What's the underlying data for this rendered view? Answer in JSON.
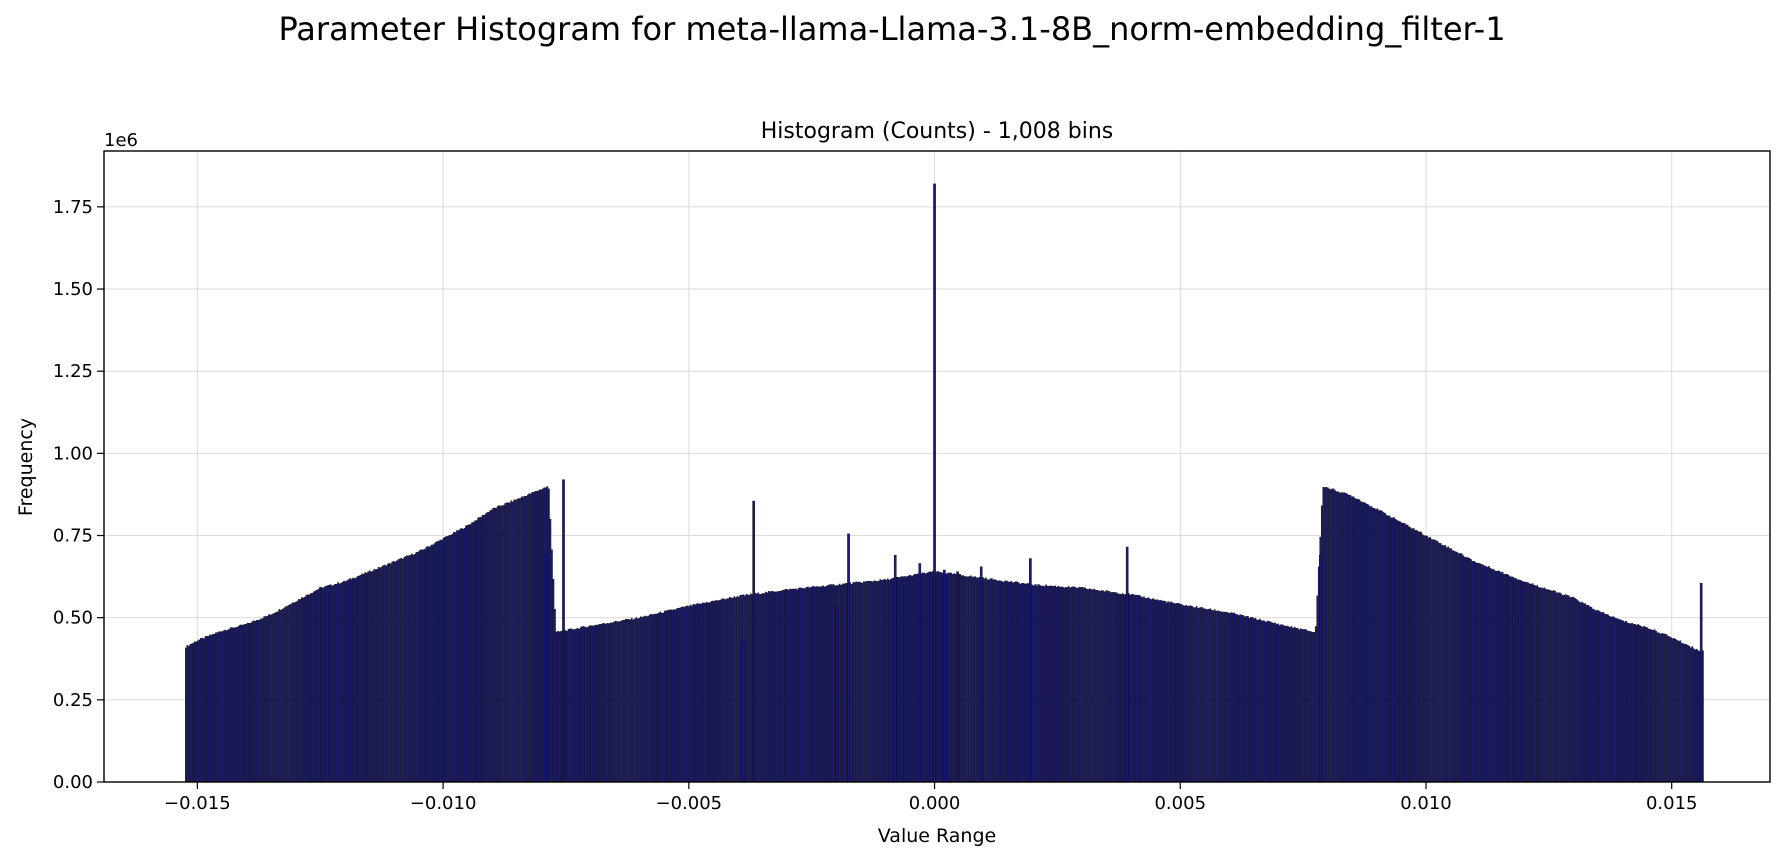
{
  "chart_data": {
    "type": "bar",
    "suptitle": "Parameter Histogram for meta-llama-Llama-3.1-8B_norm-embedding_filter-1",
    "title": "Histogram (Counts) - 1,008 bins",
    "xlabel": "Value Range",
    "ylabel": "Frequency",
    "y_offset_label": "1e6",
    "xlim": [
      -0.0169,
      0.017
    ],
    "ylim": [
      0,
      1.92
    ],
    "x_ticks": [
      -0.015,
      -0.01,
      -0.005,
      0.0,
      0.005,
      0.01,
      0.015
    ],
    "x_tick_labels": [
      "−0.015",
      "−0.010",
      "−0.005",
      "0.000",
      "0.005",
      "0.010",
      "0.015"
    ],
    "y_ticks": [
      0,
      0.25,
      0.5,
      0.75,
      1.0,
      1.25,
      1.5,
      1.75
    ],
    "y_tick_labels": [
      "0.00",
      "0.25",
      "0.50",
      "0.75",
      "1.00",
      "1.25",
      "1.50",
      "1.75"
    ],
    "grid": true,
    "bar_color": "#1c1c80",
    "edge_color": "#000000",
    "bins": 1008,
    "x_range": [
      -0.01525,
      0.01565
    ],
    "profile": [
      {
        "x": -0.01525,
        "y": 0.41
      },
      {
        "x": -0.015,
        "y": 0.43
      },
      {
        "x": -0.0145,
        "y": 0.46
      },
      {
        "x": -0.014,
        "y": 0.48
      },
      {
        "x": -0.0135,
        "y": 0.51
      },
      {
        "x": -0.013,
        "y": 0.55
      },
      {
        "x": -0.0125,
        "y": 0.59
      },
      {
        "x": -0.012,
        "y": 0.61
      },
      {
        "x": -0.0115,
        "y": 0.64
      },
      {
        "x": -0.011,
        "y": 0.67
      },
      {
        "x": -0.0105,
        "y": 0.7
      },
      {
        "x": -0.01,
        "y": 0.74
      },
      {
        "x": -0.0095,
        "y": 0.78
      },
      {
        "x": -0.009,
        "y": 0.83
      },
      {
        "x": -0.0085,
        "y": 0.86
      },
      {
        "x": -0.00785,
        "y": 0.9
      },
      {
        "x": -0.0077,
        "y": 0.455
      },
      {
        "x": -0.007,
        "y": 0.475
      },
      {
        "x": -0.006,
        "y": 0.5
      },
      {
        "x": -0.005,
        "y": 0.535
      },
      {
        "x": -0.004,
        "y": 0.565
      },
      {
        "x": -0.003,
        "y": 0.585
      },
      {
        "x": -0.002,
        "y": 0.6
      },
      {
        "x": -0.001,
        "y": 0.615
      },
      {
        "x": 0.0,
        "y": 0.64
      },
      {
        "x": 0.001,
        "y": 0.62
      },
      {
        "x": 0.002,
        "y": 0.6
      },
      {
        "x": 0.003,
        "y": 0.59
      },
      {
        "x": 0.004,
        "y": 0.57
      },
      {
        "x": 0.005,
        "y": 0.54
      },
      {
        "x": 0.006,
        "y": 0.515
      },
      {
        "x": 0.007,
        "y": 0.48
      },
      {
        "x": 0.00775,
        "y": 0.455
      },
      {
        "x": 0.0079,
        "y": 0.9
      },
      {
        "x": 0.0085,
        "y": 0.87
      },
      {
        "x": 0.009,
        "y": 0.83
      },
      {
        "x": 0.0095,
        "y": 0.79
      },
      {
        "x": 0.01,
        "y": 0.75
      },
      {
        "x": 0.0105,
        "y": 0.71
      },
      {
        "x": 0.011,
        "y": 0.67
      },
      {
        "x": 0.0115,
        "y": 0.64
      },
      {
        "x": 0.012,
        "y": 0.61
      },
      {
        "x": 0.0125,
        "y": 0.585
      },
      {
        "x": 0.013,
        "y": 0.56
      },
      {
        "x": 0.0135,
        "y": 0.52
      },
      {
        "x": 0.014,
        "y": 0.49
      },
      {
        "x": 0.0145,
        "y": 0.47
      },
      {
        "x": 0.015,
        "y": 0.44
      },
      {
        "x": 0.01555,
        "y": 0.4
      }
    ],
    "spikes": [
      {
        "x": 0.0,
        "y": 1.82
      },
      {
        "x": -0.00755,
        "y": 0.92
      },
      {
        "x": -0.00368,
        "y": 0.855
      },
      {
        "x": -0.00175,
        "y": 0.755
      },
      {
        "x": 0.00392,
        "y": 0.715
      },
      {
        "x": -0.0008,
        "y": 0.69
      },
      {
        "x": 0.00195,
        "y": 0.68
      },
      {
        "x": -0.0079,
        "y": 0.69
      },
      {
        "x": 0.00785,
        "y": 0.69
      },
      {
        "x": -0.0003,
        "y": 0.665
      },
      {
        "x": 0.00095,
        "y": 0.655
      },
      {
        "x": 0.0002,
        "y": 0.645
      },
      {
        "x": 0.00047,
        "y": 0.64
      },
      {
        "x": 0.0156,
        "y": 0.605
      }
    ],
    "dips": [
      {
        "x": -0.0039,
        "y": 0.43
      },
      {
        "x": -0.002,
        "y": 0.53
      }
    ]
  }
}
